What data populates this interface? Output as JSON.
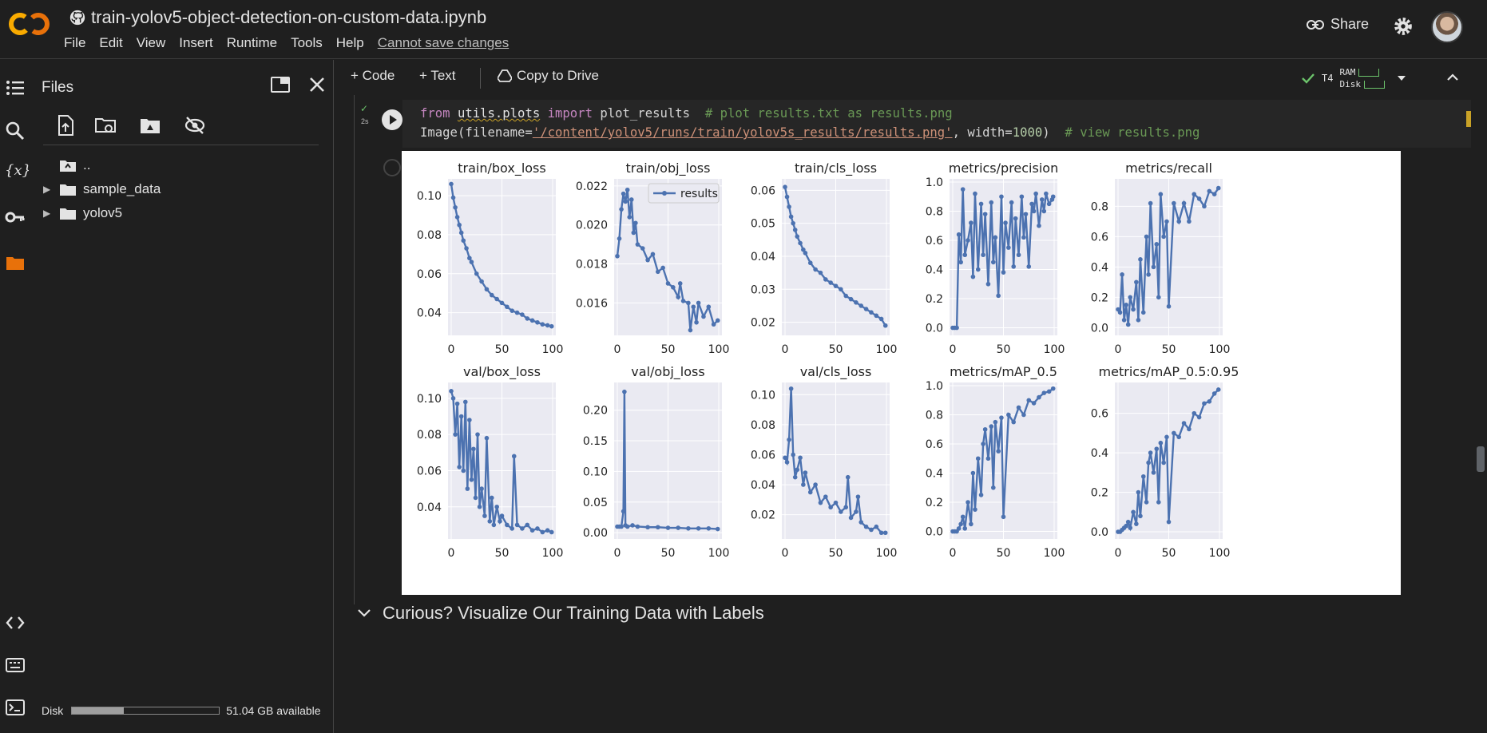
{
  "app": {
    "notebook_title": "train-yolov5-object-detection-on-custom-data.ipynb",
    "menu": [
      "File",
      "Edit",
      "View",
      "Insert",
      "Runtime",
      "Tools",
      "Help"
    ],
    "cannot_save": "Cannot save changes",
    "share_label": "Share"
  },
  "files_panel": {
    "title": "Files",
    "tree": [
      {
        "label": "..",
        "type": "up"
      },
      {
        "label": "sample_data",
        "type": "folder"
      },
      {
        "label": "yolov5",
        "type": "folder"
      }
    ],
    "disk_label": "Disk",
    "disk_available": "51.04 GB available",
    "disk_usage_fraction": 0.35
  },
  "toolbar": {
    "code_label": "+ Code",
    "text_label": "+ Text",
    "copy_label": "Copy to Drive",
    "runtime_type": "T4",
    "ram_label": "RAM",
    "disk_label": "Disk"
  },
  "cell": {
    "exec_time": "2s",
    "line1": {
      "kw1": "from",
      "mod": "utils.plots",
      "kw2": "import",
      "name": "plot_results",
      "comment": "# plot results.txt as results.png"
    },
    "line2": {
      "pre": "Image(filename=",
      "path": "'/content/yolov5/runs/train/yolov5s_results/results.png'",
      "mid": ", width=",
      "num": "1000",
      "post": ")",
      "comment": "# view results.png"
    }
  },
  "next_section": "Curious? Visualize Our Training Data with Labels",
  "colors": {
    "series": "#4c72b0",
    "plot_bg": "#eaeaf2",
    "accent": "#f9ab00"
  },
  "chart_data": [
    {
      "type": "line",
      "title": "train/box_loss",
      "xlim": [
        0,
        100
      ],
      "ylim": [
        0.03,
        0.107
      ],
      "xticks": [
        "0",
        "50",
        "100"
      ],
      "yticks": [
        0.04,
        0.06,
        0.08,
        0.1
      ],
      "ytick_labels": [
        "0.04",
        "0.06",
        "0.08",
        "0.10"
      ],
      "x": [
        0,
        2,
        4,
        6,
        8,
        10,
        12,
        15,
        18,
        20,
        25,
        30,
        35,
        40,
        45,
        50,
        55,
        60,
        65,
        70,
        75,
        80,
        85,
        90,
        95,
        99
      ],
      "series": [
        {
          "name": "results",
          "values": [
            0.106,
            0.099,
            0.094,
            0.089,
            0.085,
            0.081,
            0.077,
            0.073,
            0.068,
            0.066,
            0.06,
            0.056,
            0.052,
            0.049,
            0.047,
            0.045,
            0.043,
            0.041,
            0.04,
            0.039,
            0.037,
            0.036,
            0.035,
            0.034,
            0.0335,
            0.033
          ]
        }
      ]
    },
    {
      "type": "line",
      "title": "train/obj_loss",
      "xlim": [
        0,
        100
      ],
      "ylim": [
        0.0145,
        0.0222
      ],
      "xticks": [
        "0",
        "50",
        "100"
      ],
      "yticks": [
        0.016,
        0.018,
        0.02,
        0.022
      ],
      "ytick_labels": [
        "0.016",
        "0.018",
        "0.020",
        "0.022"
      ],
      "legend": "results",
      "legend_position": "top-right",
      "x": [
        0,
        2,
        4,
        6,
        8,
        10,
        12,
        14,
        16,
        18,
        20,
        25,
        30,
        35,
        40,
        45,
        50,
        55,
        60,
        62,
        65,
        70,
        72,
        75,
        78,
        80,
        85,
        90,
        95,
        99
      ],
      "series": [
        {
          "name": "results",
          "values": [
            0.0184,
            0.0193,
            0.0208,
            0.0216,
            0.0212,
            0.0218,
            0.0204,
            0.0213,
            0.0196,
            0.0201,
            0.019,
            0.0188,
            0.0182,
            0.0185,
            0.0176,
            0.0178,
            0.017,
            0.0168,
            0.0163,
            0.017,
            0.0161,
            0.016,
            0.0146,
            0.0158,
            0.015,
            0.016,
            0.0153,
            0.0158,
            0.0149,
            0.0151
          ]
        }
      ]
    },
    {
      "type": "line",
      "title": "train/cls_loss",
      "xlim": [
        0,
        100
      ],
      "ylim": [
        0.017,
        0.0625
      ],
      "xticks": [
        "0",
        "50",
        "100"
      ],
      "yticks": [
        0.02,
        0.03,
        0.04,
        0.05,
        0.06
      ],
      "ytick_labels": [
        "0.02",
        "0.03",
        "0.04",
        "0.05",
        "0.06"
      ],
      "x": [
        0,
        2,
        4,
        6,
        8,
        10,
        12,
        15,
        18,
        20,
        25,
        30,
        35,
        40,
        45,
        50,
        55,
        60,
        65,
        70,
        75,
        80,
        85,
        90,
        95,
        99
      ],
      "series": [
        {
          "name": "results",
          "values": [
            0.061,
            0.058,
            0.055,
            0.052,
            0.05,
            0.048,
            0.046,
            0.044,
            0.042,
            0.041,
            0.038,
            0.036,
            0.035,
            0.033,
            0.032,
            0.031,
            0.03,
            0.028,
            0.027,
            0.026,
            0.025,
            0.024,
            0.023,
            0.022,
            0.021,
            0.019
          ]
        }
      ]
    },
    {
      "type": "line",
      "title": "metrics/precision",
      "xlim": [
        0,
        100
      ],
      "ylim": [
        -0.03,
        1.0
      ],
      "xticks": [
        "0",
        "50",
        "100"
      ],
      "yticks": [
        0.0,
        0.2,
        0.4,
        0.6,
        0.8,
        1.0
      ],
      "ytick_labels": [
        "0.0",
        "0.2",
        "0.4",
        "0.6",
        "0.8",
        "1.0"
      ],
      "x": [
        0,
        2,
        4,
        6,
        8,
        10,
        12,
        15,
        18,
        20,
        22,
        25,
        28,
        30,
        32,
        35,
        38,
        40,
        42,
        45,
        48,
        50,
        52,
        55,
        58,
        60,
        62,
        65,
        68,
        70,
        72,
        75,
        78,
        80,
        82,
        85,
        88,
        90,
        92,
        95,
        98,
        99
      ],
      "series": [
        {
          "name": "results",
          "values": [
            0,
            0,
            0,
            0.64,
            0.45,
            0.95,
            0.5,
            0.6,
            0.72,
            0.35,
            0.92,
            0.4,
            0.85,
            0.5,
            0.78,
            0.3,
            0.86,
            0.45,
            0.62,
            0.22,
            0.9,
            0.38,
            0.72,
            0.55,
            0.86,
            0.42,
            0.75,
            0.5,
            0.9,
            0.62,
            0.78,
            0.42,
            0.85,
            0.8,
            0.92,
            0.7,
            0.88,
            0.8,
            0.92,
            0.85,
            0.88,
            0.9
          ]
        }
      ]
    },
    {
      "type": "line",
      "title": "metrics/recall",
      "xlim": [
        0,
        100
      ],
      "ylim": [
        -0.03,
        0.96
      ],
      "xticks": [
        "0",
        "50",
        "100"
      ],
      "yticks": [
        0.0,
        0.2,
        0.4,
        0.6,
        0.8
      ],
      "ytick_labels": [
        "0.0",
        "0.2",
        "0.4",
        "0.6",
        "0.8"
      ],
      "x": [
        0,
        2,
        4,
        6,
        8,
        10,
        12,
        15,
        18,
        20,
        22,
        25,
        28,
        30,
        32,
        35,
        38,
        40,
        42,
        45,
        48,
        50,
        55,
        60,
        65,
        70,
        75,
        80,
        85,
        90,
        95,
        99
      ],
      "series": [
        {
          "name": "results",
          "values": [
            0.12,
            0.1,
            0.35,
            0.05,
            0.15,
            0.02,
            0.2,
            0.12,
            0.3,
            0.05,
            0.45,
            0.1,
            0.6,
            0.35,
            0.82,
            0.4,
            0.55,
            0.2,
            0.88,
            0.6,
            0.7,
            0.14,
            0.82,
            0.7,
            0.82,
            0.7,
            0.88,
            0.85,
            0.8,
            0.9,
            0.88,
            0.92
          ]
        }
      ]
    },
    {
      "type": "line",
      "title": "val/box_loss",
      "xlim": [
        0,
        100
      ],
      "ylim": [
        0.024,
        0.107
      ],
      "xticks": [
        "0",
        "50",
        "100"
      ],
      "yticks": [
        0.04,
        0.06,
        0.08,
        0.1
      ],
      "ytick_labels": [
        "0.04",
        "0.06",
        "0.08",
        "0.10"
      ],
      "x": [
        0,
        2,
        4,
        6,
        8,
        10,
        12,
        14,
        16,
        18,
        20,
        22,
        24,
        26,
        28,
        30,
        33,
        35,
        38,
        40,
        42,
        45,
        48,
        50,
        55,
        60,
        62,
        65,
        70,
        75,
        80,
        85,
        90,
        95,
        99
      ],
      "series": [
        {
          "name": "results",
          "values": [
            0.104,
            0.1,
            0.08,
            0.097,
            0.062,
            0.09,
            0.06,
            0.098,
            0.05,
            0.088,
            0.055,
            0.072,
            0.045,
            0.08,
            0.04,
            0.05,
            0.035,
            0.078,
            0.032,
            0.045,
            0.03,
            0.04,
            0.032,
            0.035,
            0.03,
            0.028,
            0.068,
            0.03,
            0.028,
            0.03,
            0.027,
            0.028,
            0.026,
            0.027,
            0.026
          ]
        }
      ]
    },
    {
      "type": "line",
      "title": "val/obj_loss",
      "xlim": [
        0,
        100
      ],
      "ylim": [
        -0.005,
        0.24
      ],
      "xticks": [
        "0",
        "50",
        "100"
      ],
      "yticks": [
        0.0,
        0.05,
        0.1,
        0.15,
        0.2
      ],
      "ytick_labels": [
        "0.00",
        "0.05",
        "0.10",
        "0.15",
        "0.20"
      ],
      "x": [
        0,
        2,
        4,
        6,
        7,
        8,
        10,
        15,
        20,
        30,
        40,
        50,
        60,
        70,
        80,
        90,
        99
      ],
      "series": [
        {
          "name": "results",
          "values": [
            0.01,
            0.01,
            0.01,
            0.035,
            0.23,
            0.012,
            0.01,
            0.012,
            0.01,
            0.009,
            0.009,
            0.008,
            0.008,
            0.007,
            0.007,
            0.007,
            0.006
          ]
        }
      ]
    },
    {
      "type": "line",
      "title": "val/cls_loss",
      "xlim": [
        0,
        100
      ],
      "ylim": [
        0.006,
        0.106
      ],
      "xticks": [
        "0",
        "50",
        "100"
      ],
      "yticks": [
        0.02,
        0.04,
        0.06,
        0.08,
        0.1
      ],
      "ytick_labels": [
        "0.02",
        "0.04",
        "0.06",
        "0.08",
        "0.10"
      ],
      "x": [
        0,
        2,
        4,
        6,
        8,
        10,
        12,
        15,
        18,
        20,
        25,
        30,
        35,
        40,
        45,
        50,
        55,
        60,
        62,
        65,
        70,
        72,
        75,
        80,
        85,
        90,
        95,
        99
      ],
      "series": [
        {
          "name": "results",
          "values": [
            0.058,
            0.055,
            0.07,
            0.104,
            0.06,
            0.045,
            0.05,
            0.058,
            0.04,
            0.048,
            0.035,
            0.04,
            0.028,
            0.032,
            0.025,
            0.028,
            0.022,
            0.025,
            0.045,
            0.018,
            0.022,
            0.032,
            0.015,
            0.012,
            0.01,
            0.012,
            0.008,
            0.008
          ]
        }
      ]
    },
    {
      "type": "line",
      "title": "metrics/mAP_0.5",
      "xlim": [
        0,
        100
      ],
      "ylim": [
        -0.03,
        1.0
      ],
      "xticks": [
        "0",
        "50",
        "100"
      ],
      "yticks": [
        0.0,
        0.2,
        0.4,
        0.6,
        0.8,
        1.0
      ],
      "ytick_labels": [
        "0.0",
        "0.2",
        "0.4",
        "0.6",
        "0.8",
        "1.0"
      ],
      "x": [
        0,
        2,
        4,
        6,
        8,
        10,
        12,
        15,
        18,
        20,
        22,
        25,
        28,
        30,
        32,
        35,
        38,
        40,
        42,
        45,
        48,
        50,
        55,
        60,
        65,
        70,
        75,
        80,
        85,
        90,
        95,
        99
      ],
      "series": [
        {
          "name": "results",
          "values": [
            0,
            0,
            0,
            0.02,
            0.05,
            0.1,
            0.02,
            0.2,
            0.05,
            0.4,
            0.15,
            0.5,
            0.25,
            0.6,
            0.7,
            0.5,
            0.72,
            0.3,
            0.75,
            0.55,
            0.78,
            0.1,
            0.8,
            0.75,
            0.85,
            0.8,
            0.9,
            0.88,
            0.92,
            0.95,
            0.96,
            0.98
          ]
        }
      ]
    },
    {
      "type": "line",
      "title": "metrics/mAP_0.5:0.95",
      "xlim": [
        0,
        100
      ],
      "ylim": [
        -0.02,
        0.74
      ],
      "xticks": [
        "0",
        "50",
        "100"
      ],
      "yticks": [
        0.0,
        0.2,
        0.4,
        0.6
      ],
      "ytick_labels": [
        "0.0",
        "0.2",
        "0.4",
        "0.6"
      ],
      "x": [
        0,
        2,
        4,
        6,
        8,
        10,
        12,
        15,
        18,
        20,
        22,
        25,
        28,
        30,
        32,
        35,
        38,
        40,
        42,
        45,
        48,
        50,
        55,
        60,
        65,
        70,
        75,
        80,
        85,
        90,
        95,
        99
      ],
      "series": [
        {
          "name": "results",
          "values": [
            0,
            0,
            0.01,
            0.02,
            0.03,
            0.05,
            0.02,
            0.1,
            0.04,
            0.2,
            0.08,
            0.28,
            0.15,
            0.35,
            0.4,
            0.3,
            0.42,
            0.15,
            0.45,
            0.35,
            0.48,
            0.05,
            0.5,
            0.48,
            0.55,
            0.52,
            0.6,
            0.58,
            0.65,
            0.66,
            0.7,
            0.72
          ]
        }
      ]
    }
  ]
}
